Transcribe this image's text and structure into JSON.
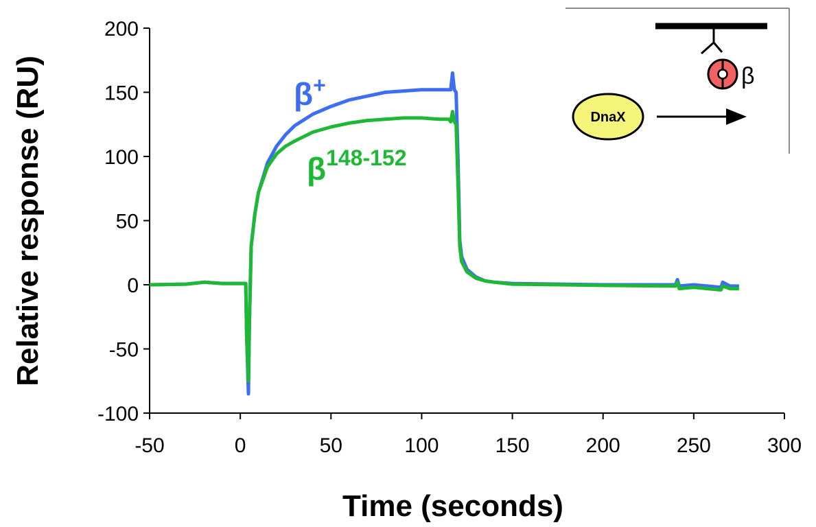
{
  "chart_data": {
    "type": "line",
    "xlabel": "Time (seconds)",
    "ylabel": "Relative response (RU)",
    "xlim": [
      -50,
      300
    ],
    "ylim": [
      -100,
      200
    ],
    "x_ticks": [
      -50,
      0,
      50,
      100,
      150,
      200,
      250,
      300
    ],
    "y_ticks": [
      -100,
      -50,
      0,
      50,
      100,
      150,
      200
    ],
    "grid": false,
    "series": [
      {
        "name": "β+",
        "label_base": "β",
        "label_sup": "+",
        "color": "#3d6ef2",
        "points": [
          [
            -50,
            0
          ],
          [
            -30,
            0.5
          ],
          [
            -20,
            2
          ],
          [
            -10,
            1
          ],
          [
            0,
            1
          ],
          [
            3,
            1
          ],
          [
            3.5,
            -40
          ],
          [
            4.5,
            -85
          ],
          [
            5,
            -30
          ],
          [
            6,
            30
          ],
          [
            8,
            55
          ],
          [
            10,
            72
          ],
          [
            15,
            95
          ],
          [
            20,
            108
          ],
          [
            25,
            117
          ],
          [
            30,
            124
          ],
          [
            40,
            133
          ],
          [
            50,
            139
          ],
          [
            60,
            144
          ],
          [
            70,
            147
          ],
          [
            80,
            150
          ],
          [
            90,
            151
          ],
          [
            100,
            152
          ],
          [
            110,
            152
          ],
          [
            116,
            152
          ],
          [
            117,
            165
          ],
          [
            118,
            152
          ],
          [
            119,
            150
          ],
          [
            120,
            100
          ],
          [
            121,
            35
          ],
          [
            122,
            22
          ],
          [
            125,
            12
          ],
          [
            130,
            6
          ],
          [
            135,
            3
          ],
          [
            140,
            2
          ],
          [
            150,
            1
          ],
          [
            200,
            0
          ],
          [
            240,
            0
          ],
          [
            241,
            4
          ],
          [
            242,
            -1
          ],
          [
            250,
            0
          ],
          [
            265,
            -2
          ],
          [
            266,
            2
          ],
          [
            270,
            -1
          ],
          [
            275,
            -1
          ]
        ]
      },
      {
        "name": "β148-152",
        "label_base": "β",
        "label_sup": "148-152",
        "color": "#1fb836",
        "points": [
          [
            -50,
            0
          ],
          [
            -30,
            0.5
          ],
          [
            -20,
            2
          ],
          [
            -10,
            1
          ],
          [
            0,
            1
          ],
          [
            3,
            1
          ],
          [
            3.5,
            -40
          ],
          [
            4.5,
            -75
          ],
          [
            5,
            -30
          ],
          [
            6,
            30
          ],
          [
            8,
            55
          ],
          [
            10,
            72
          ],
          [
            15,
            92
          ],
          [
            20,
            102
          ],
          [
            25,
            108
          ],
          [
            30,
            112
          ],
          [
            40,
            119
          ],
          [
            50,
            123
          ],
          [
            60,
            126
          ],
          [
            70,
            128
          ],
          [
            80,
            129
          ],
          [
            90,
            130
          ],
          [
            100,
            130
          ],
          [
            110,
            129
          ],
          [
            115,
            129
          ],
          [
            116,
            127
          ],
          [
            117,
            135
          ],
          [
            118,
            127
          ],
          [
            119,
            125
          ],
          [
            120,
            80
          ],
          [
            121,
            30
          ],
          [
            122,
            18
          ],
          [
            125,
            10
          ],
          [
            130,
            5
          ],
          [
            135,
            3
          ],
          [
            140,
            2
          ],
          [
            150,
            0.5
          ],
          [
            200,
            -0.5
          ],
          [
            240,
            -1
          ],
          [
            241,
            2
          ],
          [
            242,
            -3
          ],
          [
            250,
            -2
          ],
          [
            265,
            -4
          ],
          [
            266,
            -1
          ],
          [
            270,
            -3
          ],
          [
            275,
            -3
          ]
        ]
      }
    ],
    "inset": {
      "particle_label": "DnaX",
      "ring_label": "β"
    }
  }
}
